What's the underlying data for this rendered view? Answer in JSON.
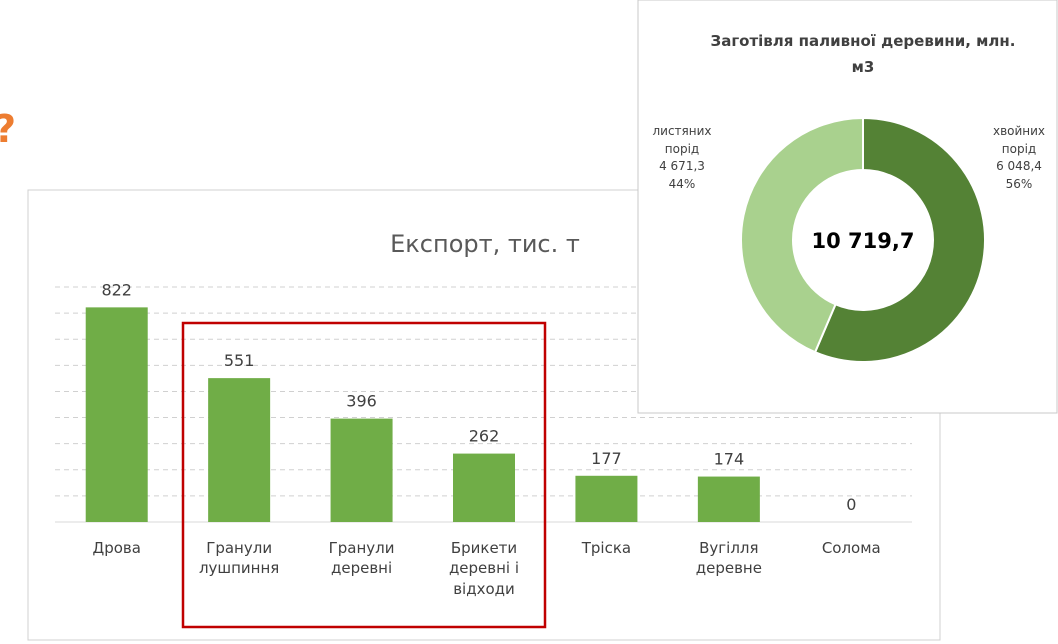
{
  "heading_fragment": "?",
  "chart_data": [
    {
      "type": "bar",
      "title": "Експорт, тис. т",
      "categories": [
        "Дрова",
        "Гранули лушпиння",
        "Гранули деревні",
        "Брикети деревні і відходи",
        "Тріска",
        "Вугілля деревне",
        "Солома"
      ],
      "values": [
        822,
        551,
        396,
        262,
        177,
        174,
        0
      ],
      "color": "#70ad47",
      "ylim": [
        0,
        900
      ],
      "yticks": [
        0,
        100,
        200,
        300,
        400,
        500,
        600,
        700,
        800,
        900
      ],
      "grid": true,
      "tick_labels": false
    },
    {
      "type": "donut",
      "title": "Заготівля паливної деревини, млн. м3",
      "categories": [
        "хвойних порід",
        "листяних порід"
      ],
      "values": [
        6048.4,
        4671.3
      ],
      "value_labels": [
        "6 048,4",
        "4 671,3"
      ],
      "percentages": [
        56,
        44
      ],
      "percent_labels": [
        "56%",
        "44%"
      ],
      "colors": [
        "#548235",
        "#a9d18e"
      ],
      "total": 10719.7,
      "total_label": "10 719,7"
    }
  ]
}
